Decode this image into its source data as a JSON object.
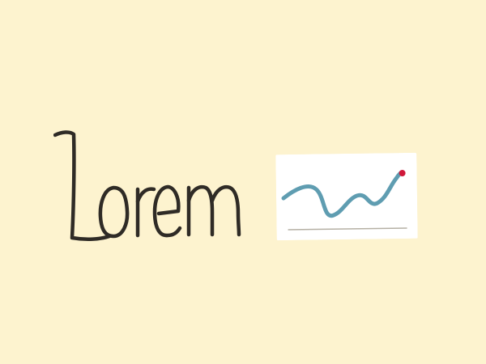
{
  "logo": {
    "text": "Lorem",
    "ink_color": "#2f2b26",
    "background_color": "#fdf3cf"
  },
  "chart_icon": {
    "icon": "sparkline-chart-icon",
    "card_color": "#ffffff",
    "line_color": "#5f9db1",
    "marker_color": "#d0183a",
    "baseline_color": "#b5b0a4"
  }
}
